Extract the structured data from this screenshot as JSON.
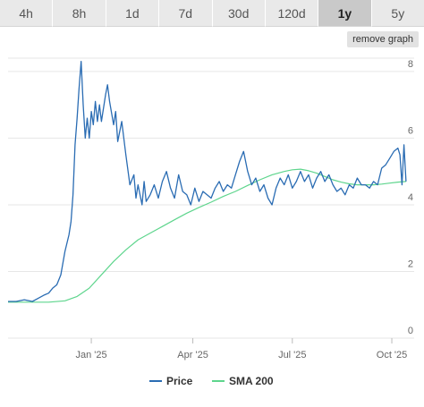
{
  "toolbar": {
    "tabs": [
      {
        "label": "4h",
        "active": false
      },
      {
        "label": "8h",
        "active": false
      },
      {
        "label": "1d",
        "active": false
      },
      {
        "label": "7d",
        "active": false
      },
      {
        "label": "30d",
        "active": false
      },
      {
        "label": "120d",
        "active": false
      },
      {
        "label": "1y",
        "active": true
      },
      {
        "label": "5y",
        "active": false
      }
    ],
    "remove_graph_label": "remove graph"
  },
  "colors": {
    "price": "#2a6cb3",
    "sma": "#5ed58d",
    "grid": "#e6e6e6",
    "tab_bg": "#e9e9e9",
    "tab_active_bg": "#c9c9c9"
  },
  "chart_data": {
    "type": "line",
    "x_tick_labels": [
      "Jan '25",
      "Apr '25",
      "Jul '25",
      "Oct '25"
    ],
    "y_ticks": [
      0,
      2,
      4,
      6,
      8
    ],
    "ylim": [
      0,
      8.4
    ],
    "xlim": [
      0,
      1
    ],
    "grid": true,
    "legend_position": "bottom",
    "x_tick_positions": [
      0.205,
      0.455,
      0.7,
      0.945
    ],
    "series": [
      {
        "name": "Price",
        "color": "#2a6cb3",
        "x": [
          0.0,
          0.02,
          0.04,
          0.06,
          0.075,
          0.09,
          0.1,
          0.11,
          0.12,
          0.13,
          0.14,
          0.15,
          0.155,
          0.16,
          0.165,
          0.17,
          0.175,
          0.18,
          0.185,
          0.19,
          0.195,
          0.2,
          0.205,
          0.21,
          0.215,
          0.22,
          0.225,
          0.23,
          0.24,
          0.245,
          0.25,
          0.26,
          0.265,
          0.27,
          0.28,
          0.29,
          0.3,
          0.31,
          0.315,
          0.32,
          0.33,
          0.335,
          0.34,
          0.35,
          0.36,
          0.37,
          0.38,
          0.39,
          0.4,
          0.41,
          0.42,
          0.43,
          0.44,
          0.45,
          0.46,
          0.47,
          0.48,
          0.49,
          0.5,
          0.51,
          0.52,
          0.53,
          0.54,
          0.55,
          0.56,
          0.57,
          0.58,
          0.59,
          0.6,
          0.61,
          0.62,
          0.63,
          0.64,
          0.65,
          0.66,
          0.67,
          0.68,
          0.69,
          0.7,
          0.71,
          0.72,
          0.73,
          0.74,
          0.75,
          0.76,
          0.77,
          0.78,
          0.79,
          0.8,
          0.81,
          0.82,
          0.83,
          0.84,
          0.85,
          0.86,
          0.87,
          0.88,
          0.89,
          0.9,
          0.91,
          0.92,
          0.93,
          0.94,
          0.95,
          0.96,
          0.965,
          0.97,
          0.975,
          0.98
        ],
        "y": [
          1.1,
          1.1,
          1.15,
          1.1,
          1.2,
          1.3,
          1.35,
          1.5,
          1.6,
          1.9,
          2.6,
          3.1,
          3.5,
          4.3,
          5.8,
          6.6,
          7.5,
          8.3,
          7.0,
          6.0,
          6.6,
          6.0,
          6.8,
          6.4,
          7.1,
          6.5,
          7.0,
          6.5,
          7.3,
          7.6,
          7.1,
          6.4,
          6.8,
          5.9,
          6.5,
          5.5,
          4.6,
          4.9,
          4.2,
          4.6,
          4.0,
          4.7,
          4.1,
          4.3,
          4.6,
          4.2,
          4.7,
          5.0,
          4.5,
          4.2,
          4.9,
          4.4,
          4.3,
          4.0,
          4.5,
          4.1,
          4.4,
          4.3,
          4.2,
          4.5,
          4.7,
          4.4,
          4.6,
          4.5,
          4.9,
          5.3,
          5.6,
          5.0,
          4.6,
          4.8,
          4.4,
          4.6,
          4.2,
          4.0,
          4.5,
          4.8,
          4.6,
          4.9,
          4.5,
          4.7,
          5.0,
          4.7,
          4.9,
          4.5,
          4.8,
          5.0,
          4.7,
          4.9,
          4.6,
          4.4,
          4.5,
          4.3,
          4.6,
          4.5,
          4.8,
          4.6,
          4.6,
          4.5,
          4.7,
          4.6,
          5.1,
          5.2,
          5.4,
          5.6,
          5.7,
          5.5,
          4.6,
          5.8,
          4.7
        ]
      },
      {
        "name": "SMA 200",
        "color": "#5ed58d",
        "x": [
          0.0,
          0.1,
          0.14,
          0.17,
          0.2,
          0.23,
          0.26,
          0.29,
          0.32,
          0.35,
          0.38,
          0.41,
          0.44,
          0.47,
          0.5,
          0.53,
          0.56,
          0.59,
          0.62,
          0.65,
          0.68,
          0.7,
          0.72,
          0.74,
          0.76,
          0.78,
          0.8,
          0.82,
          0.84,
          0.86,
          0.88,
          0.9,
          0.92,
          0.94,
          0.96,
          0.98
        ],
        "y": [
          1.08,
          1.08,
          1.12,
          1.25,
          1.5,
          1.9,
          2.3,
          2.65,
          2.95,
          3.15,
          3.35,
          3.55,
          3.75,
          3.92,
          4.08,
          4.25,
          4.4,
          4.58,
          4.75,
          4.9,
          5.0,
          5.05,
          5.07,
          5.02,
          4.95,
          4.85,
          4.75,
          4.68,
          4.63,
          4.6,
          4.6,
          4.6,
          4.62,
          4.65,
          4.68,
          4.7
        ]
      }
    ]
  }
}
